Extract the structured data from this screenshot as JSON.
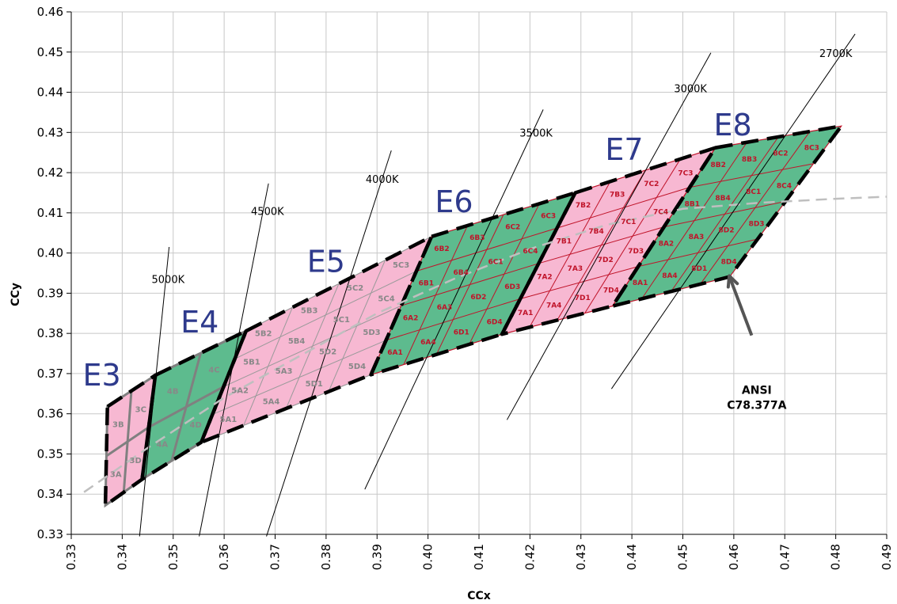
{
  "chart_data": {
    "type": "scatter",
    "title": "",
    "xlabel": "CCx",
    "ylabel": "CCy",
    "xlim": [
      0.33,
      0.49
    ],
    "ylim": [
      0.33,
      0.46
    ],
    "x_ticks": [
      "0.33",
      "0.34",
      "0.35",
      "0.36",
      "0.37",
      "0.38",
      "0.39",
      "0.40",
      "0.41",
      "0.42",
      "0.43",
      "0.44",
      "0.45",
      "0.46",
      "0.47",
      "0.48",
      "0.49"
    ],
    "y_ticks": [
      "0.33",
      "0.34",
      "0.35",
      "0.36",
      "0.37",
      "0.38",
      "0.39",
      "0.40",
      "0.41",
      "0.42",
      "0.43",
      "0.44",
      "0.45",
      "0.46"
    ],
    "grid": true,
    "colors": {
      "pink": "#f7b8d2",
      "green": "#5dbb8e",
      "gray_line": "#808080",
      "red_line": "#c0142a",
      "ansi": "#000000",
      "planckian": "#bfbfbf",
      "zone_text": "#2e3a8c"
    },
    "isotherms": [
      {
        "label": "5000K",
        "from": [
          0.3434,
          0.3295
        ],
        "to": [
          0.3492,
          0.4015
        ],
        "label_at": [
          0.349,
          0.3925
        ]
      },
      {
        "label": "4500K",
        "from": [
          0.3551,
          0.3295
        ],
        "to": [
          0.3687,
          0.4173
        ],
        "label_at": [
          0.3685,
          0.4095
        ]
      },
      {
        "label": "4000K",
        "from": [
          0.3683,
          0.3295
        ],
        "to": [
          0.3928,
          0.4255
        ],
        "label_at": [
          0.391,
          0.4175
        ]
      },
      {
        "label": "3500K",
        "from": [
          0.3876,
          0.3412
        ],
        "to": [
          0.4226,
          0.4357
        ],
        "label_at": [
          0.4212,
          0.429
        ]
      },
      {
        "label": "3000K",
        "from": [
          0.4155,
          0.3585
        ],
        "to": [
          0.4555,
          0.4498
        ],
        "label_at": [
          0.4515,
          0.44
        ]
      },
      {
        "label": "2700K",
        "from": [
          0.436,
          0.3662
        ],
        "to": [
          0.4838,
          0.4545
        ],
        "label_at": [
          0.48,
          0.4488
        ]
      }
    ],
    "zones": [
      {
        "name": "E3",
        "color": "pink",
        "label_at": [
          0.336,
          0.367
        ],
        "corners": [
          [
            0.3371,
            0.3618
          ],
          [
            0.3465,
            0.3696
          ],
          [
            0.3439,
            0.3437
          ],
          [
            0.3367,
            0.3372
          ]
        ],
        "bins": [
          "3A",
          "3B",
          "3C",
          "3D"
        ]
      },
      {
        "name": "E4",
        "color": "green",
        "label_at": [
          0.3552,
          0.3802
        ],
        "corners": [
          [
            0.3465,
            0.3696
          ],
          [
            0.3643,
            0.3806
          ],
          [
            0.3555,
            0.3529
          ],
          [
            0.3439,
            0.3437
          ]
        ],
        "bins": [
          "4A",
          "4B",
          "4C",
          "4D"
        ]
      },
      {
        "name": "E5",
        "color": "pink",
        "label_at": [
          0.38,
          0.3953
        ],
        "corners": [
          [
            0.3643,
            0.3806
          ],
          [
            0.4007,
            0.4041
          ],
          [
            0.3888,
            0.3697
          ],
          [
            0.3555,
            0.3529
          ]
        ],
        "bins": [
          "5A1",
          "5A2",
          "5A3",
          "5A4",
          "5B1",
          "5B2",
          "5B3",
          "5B4",
          "5C1",
          "5C2",
          "5C3",
          "5C4",
          "5D1",
          "5D2",
          "5D3",
          "5D4"
        ]
      },
      {
        "name": "E6",
        "color": "green",
        "label_at": [
          0.4051,
          0.4102
        ],
        "corners": [
          [
            0.4007,
            0.4041
          ],
          [
            0.4289,
            0.415
          ],
          [
            0.4145,
            0.3798
          ],
          [
            0.3888,
            0.3697
          ]
        ],
        "bins": [
          "6A1",
          "6A2",
          "6A3",
          "6A4",
          "6B1",
          "6B2",
          "6B3",
          "6B4",
          "6C1",
          "6C2",
          "6C3",
          "6C4",
          "6D1",
          "6D2",
          "6D3",
          "6D4"
        ]
      },
      {
        "name": "E7",
        "color": "pink",
        "label_at": [
          0.4385,
          0.4232
        ],
        "corners": [
          [
            0.4289,
            0.415
          ],
          [
            0.4564,
            0.4262
          ],
          [
            0.4362,
            0.3868
          ],
          [
            0.4145,
            0.3798
          ]
        ],
        "bins": [
          "7A1",
          "7A2",
          "7A3",
          "7A4",
          "7B1",
          "7B2",
          "7B3",
          "7B4",
          "7C1",
          "7C2",
          "7C3",
          "7C4",
          "7D1",
          "7D2",
          "7D3",
          "7D4"
        ]
      },
      {
        "name": "E8",
        "color": "green",
        "label_at": [
          0.4598,
          0.4293
        ],
        "corners": [
          [
            0.4564,
            0.4262
          ],
          [
            0.4811,
            0.4316
          ],
          [
            0.4592,
            0.3941
          ],
          [
            0.4362,
            0.3868
          ]
        ],
        "bins": [
          "8A1",
          "8A2",
          "8A3",
          "8A4",
          "8B1",
          "8B2",
          "8B3",
          "8B4",
          "8C1",
          "8C2",
          "8C3",
          "8C4",
          "8D1",
          "8D2",
          "8D3",
          "8D4"
        ]
      }
    ],
    "planckian_locus": [
      [
        0.3325,
        0.3405
      ],
      [
        0.345,
        0.3515
      ],
      [
        0.36,
        0.364
      ],
      [
        0.375,
        0.3745
      ],
      [
        0.39,
        0.385
      ],
      [
        0.405,
        0.3935
      ],
      [
        0.42,
        0.401
      ],
      [
        0.435,
        0.407
      ],
      [
        0.45,
        0.411
      ],
      [
        0.465,
        0.4125
      ],
      [
        0.48,
        0.4135
      ],
      [
        0.49,
        0.414
      ]
    ],
    "annotation": {
      "text_line1": "ANSI",
      "text_line2": "C78.377A",
      "arrow_tip": [
        0.4591,
        0.3943
      ],
      "arrow_tail": [
        0.4635,
        0.3795
      ],
      "text_at": [
        0.4645,
        0.365
      ]
    }
  }
}
